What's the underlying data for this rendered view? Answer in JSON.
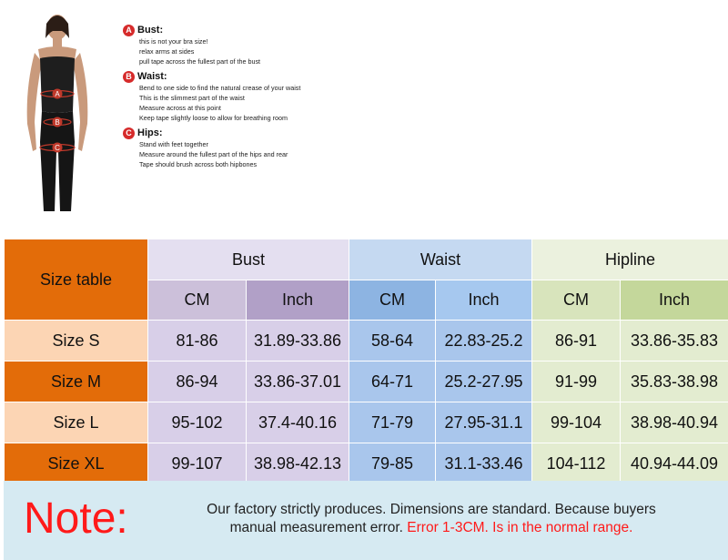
{
  "guide": [
    {
      "letter": "A",
      "title": "Bust:",
      "lines": [
        "this is not your bra size!",
        "relax arms at sides",
        "pull tape across the fullest part of the bust"
      ]
    },
    {
      "letter": "B",
      "title": "Waist:",
      "lines": [
        "Bend to one side to find the natural crease of your waist",
        "This is the slimmest part of the waist",
        "Measure across at this point",
        "Keep tape slightly loose to allow for breathing room"
      ]
    },
    {
      "letter": "C",
      "title": "Hips:",
      "lines": [
        "Stand with feet together",
        "Measure around the fullest part of the hips and rear",
        "Tape should brush across both hipbones"
      ]
    }
  ],
  "table": {
    "corner": "Size table",
    "groups": [
      "Bust",
      "Waist",
      "Hipline"
    ],
    "units": [
      "CM",
      "Inch",
      "CM",
      "Inch",
      "CM",
      "Inch"
    ],
    "rows": [
      {
        "size": "Size S",
        "cells": [
          "81-86",
          "31.89-33.86",
          "58-64",
          "22.83-25.2",
          "86-91",
          "33.86-35.83"
        ]
      },
      {
        "size": "Size M",
        "cells": [
          "86-94",
          "33.86-37.01",
          "64-71",
          "25.2-27.95",
          "91-99",
          "35.83-38.98"
        ]
      },
      {
        "size": "Size L",
        "cells": [
          "95-102",
          "37.4-40.16",
          "71-79",
          "27.95-31.1",
          "99-104",
          "38.98-40.94"
        ]
      },
      {
        "size": "Size XL",
        "cells": [
          "99-107",
          "38.98-42.13",
          "79-85",
          "31.1-33.46",
          "104-112",
          "40.94-44.09"
        ]
      }
    ]
  },
  "note": {
    "label": "Note:",
    "line1": "Our factory strictly produces. Dimensions are standard. Because buyers",
    "line2_black": "manual measurement error. ",
    "line2_red": "Error 1-3CM. Is in the normal range."
  },
  "colors": {
    "accent_red": "#ff1a1a",
    "size_orange": "#e36c09"
  }
}
